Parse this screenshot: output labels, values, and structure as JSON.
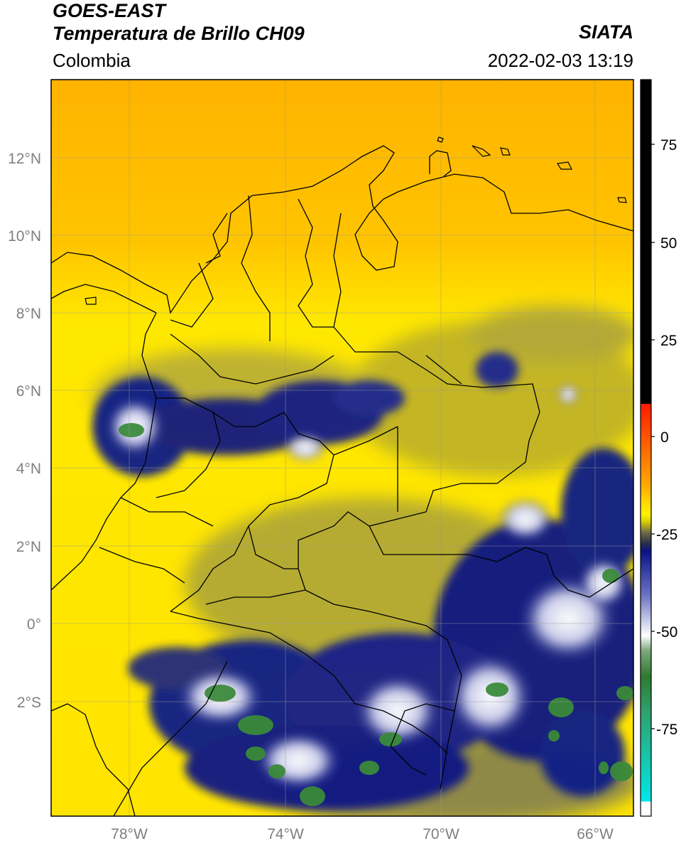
{
  "header": {
    "line1": "GOES-EAST",
    "line2": "Temperatura de Brillo CH09",
    "region": "Colombia",
    "agency": "SIATA",
    "datetime": "2022-02-03 13:19"
  },
  "map": {
    "lat_ticks": [
      "12°N",
      "10°N",
      "8°N",
      "6°N",
      "4°N",
      "2°N",
      "0°",
      "2°S"
    ],
    "lon_ticks": [
      "78°W",
      "74°W",
      "70°W",
      "66°W"
    ]
  },
  "colorbar": {
    "ticks": [
      "75",
      "50",
      "25",
      "0",
      "-25",
      "-50",
      "-75"
    ],
    "colors": {
      "black": "#000000",
      "red": "#ff2a00",
      "orange": "#ffa200",
      "yellow": "#ffee00",
      "olive": "#8a8a3a",
      "navy": "#0b1580",
      "white": "#ffffff",
      "green": "#3a8a3a",
      "cyan": "#00e0e0"
    }
  }
}
